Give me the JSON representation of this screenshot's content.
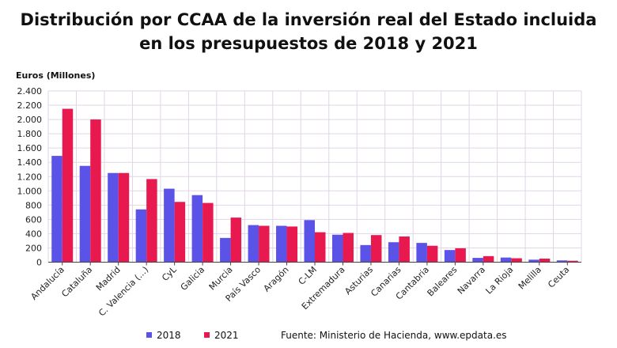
{
  "chart_data": {
    "type": "bar",
    "title_lines": [
      "Distribución por CCAA de la inversión real del Estado incluida",
      "en los presupuestos de 2018 y 2021"
    ],
    "ylabel": "Euros (Millones)",
    "xlabel": "",
    "ylim": [
      0,
      2400
    ],
    "yticks": [
      0,
      200,
      400,
      600,
      800,
      1000,
      1200,
      1400,
      1600,
      1800,
      2000,
      2200,
      2400
    ],
    "ytick_labels": [
      "0",
      "200",
      "400",
      "600",
      "800",
      "1.000",
      "1.200",
      "1.400",
      "1.600",
      "1.800",
      "2.000",
      "2.200",
      "2.400"
    ],
    "grid": true,
    "categories": [
      "Andalucía",
      "Cataluña",
      "Madrid",
      "C. Valencia (...)",
      "CyL",
      "Galicia",
      "Murcia",
      "País Vasco",
      "Aragón",
      "C-LM",
      "Extremadura",
      "Asturias",
      "Canarias",
      "Cantabria",
      "Baleares",
      "Navarra",
      "La Rioja",
      "Melilla",
      "Ceuta"
    ],
    "series": [
      {
        "name": "2018",
        "color": "#5b52e8",
        "values": [
          1490,
          1350,
          1250,
          740,
          1030,
          940,
          340,
          520,
          510,
          590,
          385,
          240,
          280,
          270,
          170,
          60,
          65,
          35,
          25
        ]
      },
      {
        "name": "2021",
        "color": "#e8194f",
        "values": [
          2150,
          2000,
          1250,
          1165,
          845,
          830,
          625,
          510,
          500,
          420,
          410,
          380,
          360,
          230,
          195,
          85,
          55,
          50,
          20
        ]
      }
    ],
    "legend_position": "bottom-left",
    "source": "Fuente: Ministerio de Hacienda, www.epdata.es"
  }
}
